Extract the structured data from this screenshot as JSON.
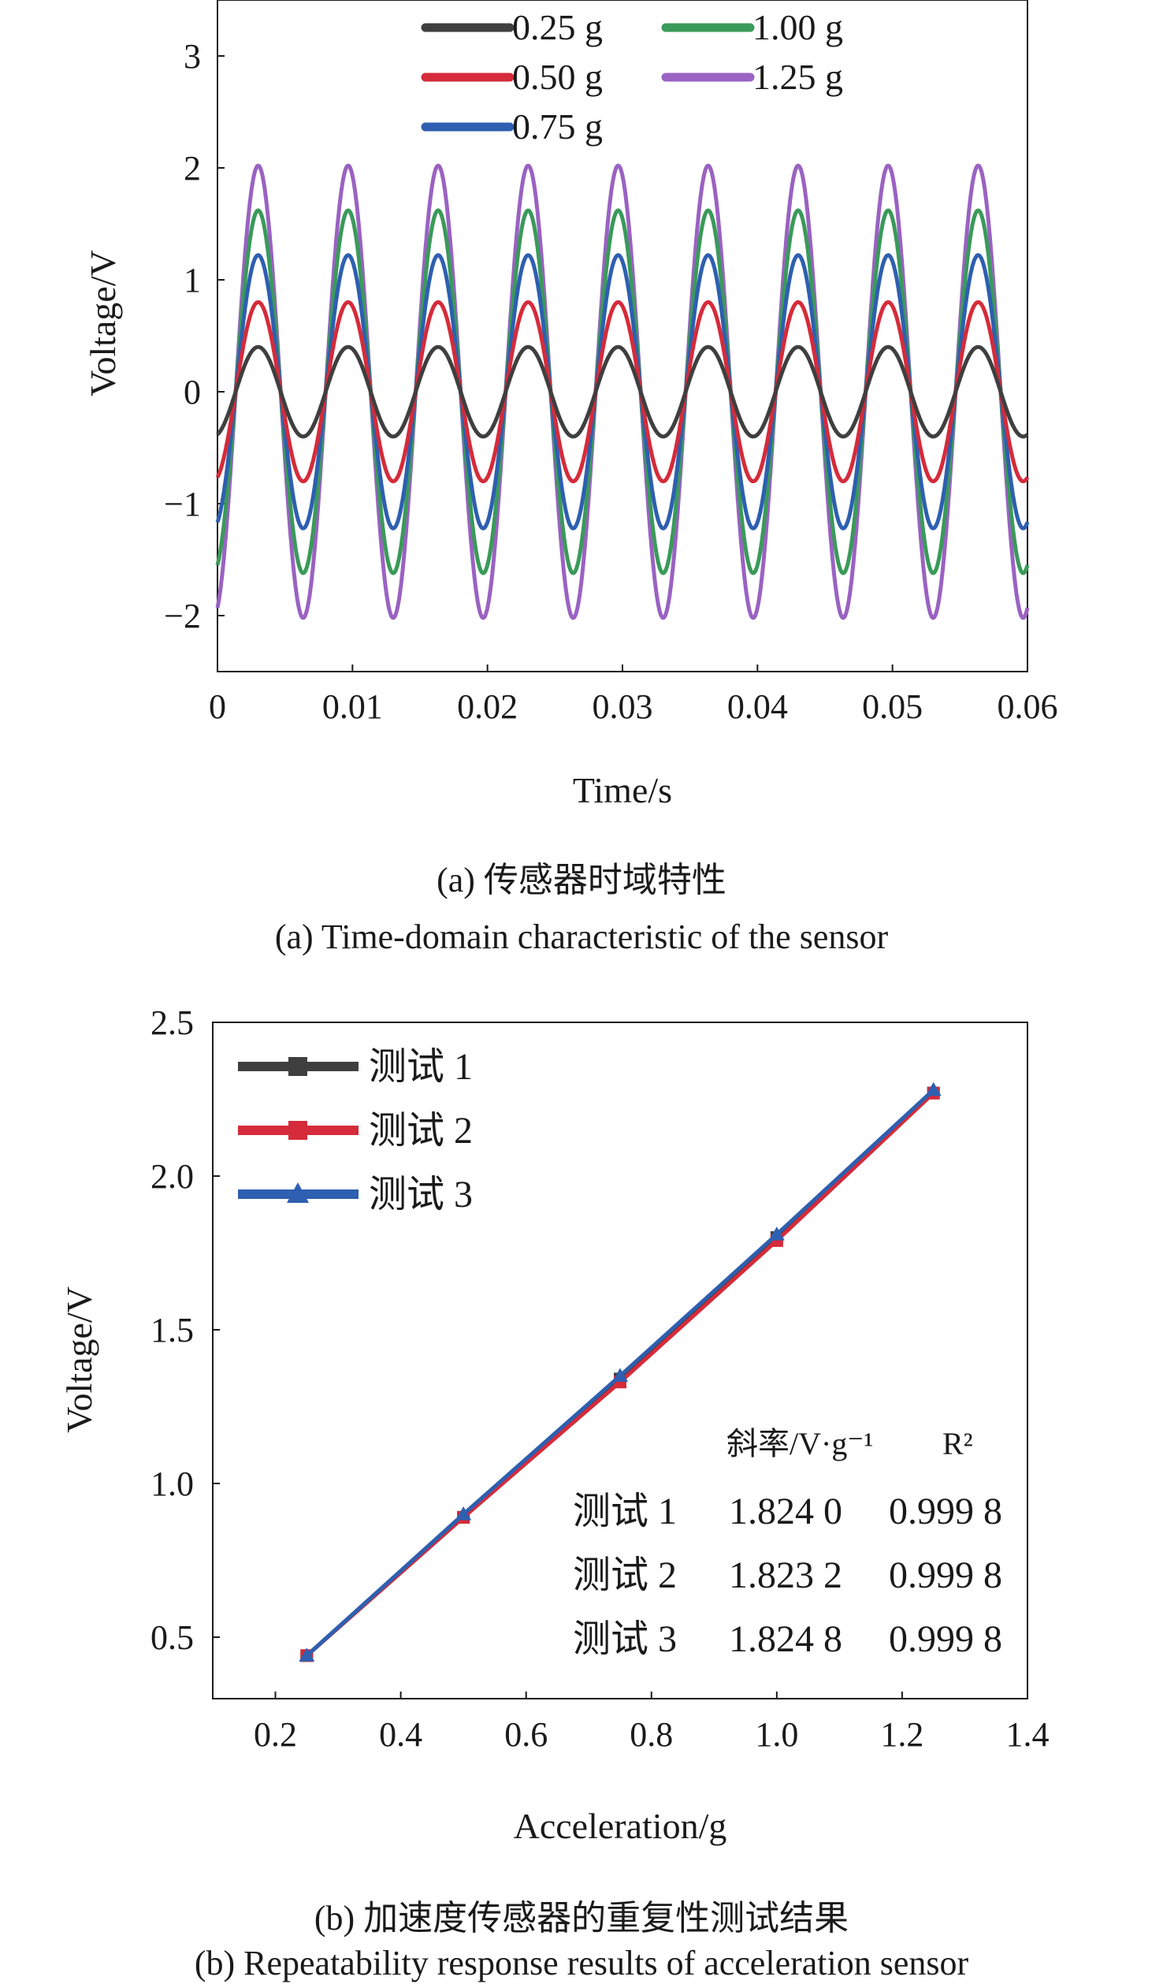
{
  "colors": {
    "0.25 g": "#3f3f3f",
    "0.50 g": "#d52b3a",
    "0.75 g": "#2e5fb0",
    "1.00 g": "#3a9a5a",
    "1.25 g": "#9a62c2",
    "测试 1": "#3f3f3f",
    "测试 2": "#d52b3a",
    "测试 3": "#2e5fb0"
  },
  "figure_a": {
    "caption_cn": "(a) 传感器时域特性",
    "caption_en": "(a) Time-domain characteristic of the sensor"
  },
  "figure_b": {
    "caption_cn": "(b) 加速度传感器的重复性测试结果",
    "caption_en": "(b) Repeatability response results of acceleration sensor",
    "fit_table": {
      "header_slope": "斜率/V·g⁻¹",
      "header_r2": "R²",
      "rows": [
        {
          "name": "测试 1",
          "slope": "1.824 0",
          "r2": "0.999 8"
        },
        {
          "name": "测试 2",
          "slope": "1.823 2",
          "r2": "0.999 8"
        },
        {
          "name": "测试 3",
          "slope": "1.824 8",
          "r2": "0.999 8"
        }
      ]
    }
  },
  "chart_data": [
    {
      "type": "line",
      "xlabel": "Time/s",
      "ylabel": "Voltage/V",
      "xlim": [
        0,
        0.06
      ],
      "ylim": [
        -2.5,
        3.5
      ],
      "xticks": [
        "0",
        "0.01",
        "0.02",
        "0.03",
        "0.04",
        "0.05",
        "0.06"
      ],
      "yticks": [
        "−2",
        "−1",
        "0",
        "1",
        "2",
        "3"
      ],
      "legend_position": "top",
      "signal": {
        "frequency_hz": 150,
        "waveform": "sine"
      },
      "series": [
        {
          "name": "0.25 g",
          "amplitude": 0.4
        },
        {
          "name": "0.50 g",
          "amplitude": 0.8
        },
        {
          "name": "0.75 g",
          "amplitude": 1.22
        },
        {
          "name": "1.00 g",
          "amplitude": 1.62
        },
        {
          "name": "1.25 g",
          "amplitude": 2.02
        }
      ]
    },
    {
      "type": "line",
      "xlabel": "Acceleration/g",
      "ylabel": "Voltage/V",
      "xlim": [
        0.1,
        1.4
      ],
      "ylim": [
        0.3,
        2.5
      ],
      "xticks": [
        "0.2",
        "0.4",
        "0.6",
        "0.8",
        "1.0",
        "1.2",
        "1.4"
      ],
      "yticks": [
        "0.5",
        "1.0",
        "1.5",
        "2.0",
        "2.5"
      ],
      "legend_position": "top-left",
      "x": [
        0.25,
        0.5,
        0.75,
        1.0,
        1.25
      ],
      "series": [
        {
          "name": "测试 1",
          "marker": "square",
          "values": [
            0.44,
            0.89,
            1.34,
            1.8,
            2.27
          ]
        },
        {
          "name": "测试 2",
          "marker": "square",
          "values": [
            0.44,
            0.89,
            1.33,
            1.79,
            2.27
          ]
        },
        {
          "name": "测试 3",
          "marker": "triangle",
          "values": [
            0.44,
            0.9,
            1.35,
            1.81,
            2.28
          ]
        }
      ]
    }
  ]
}
